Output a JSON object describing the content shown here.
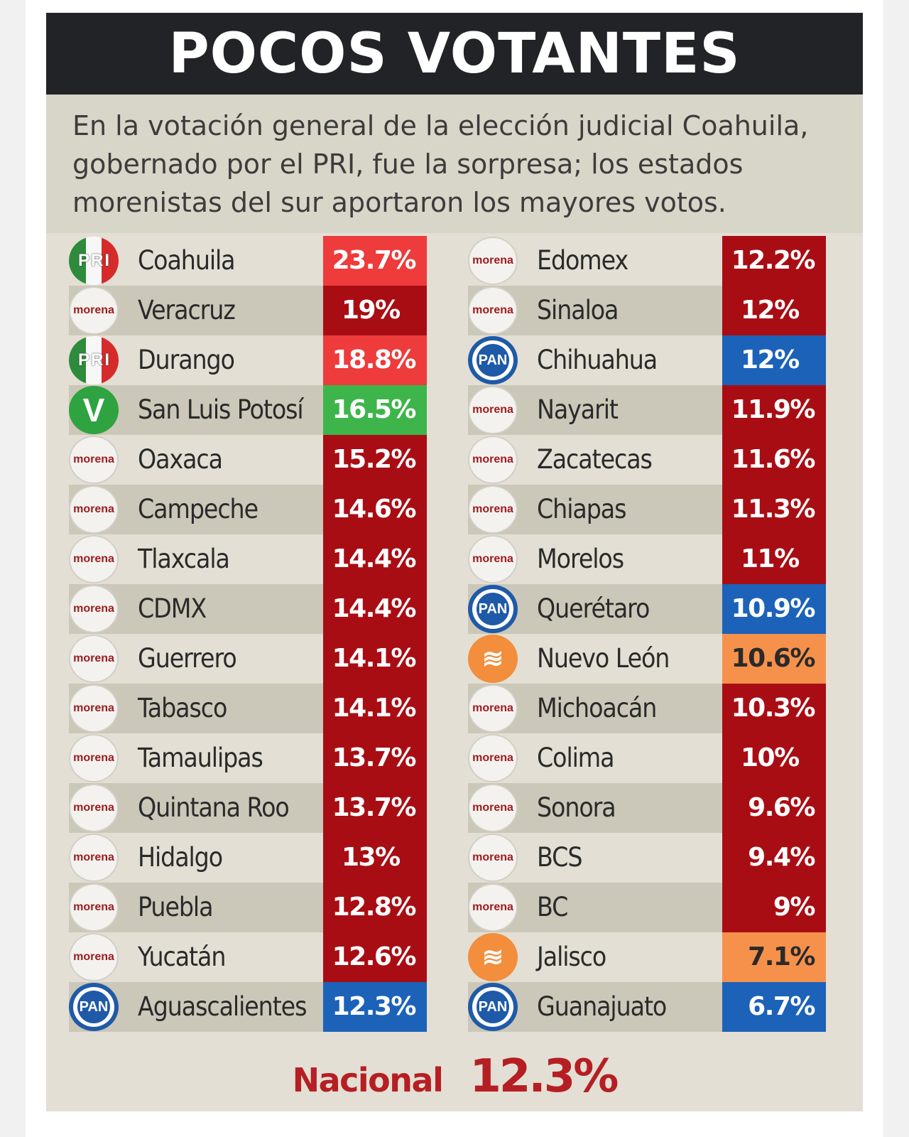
{
  "title": "POCOS VOTANTES",
  "subtitle_lines": [
    "En la votación general de la elección judicial Coahuila,",
    "gobernado por el PRI, fue la sorpresa; los estados",
    "morenistas del sur aportaron los mayores votos."
  ],
  "colors": {
    "PRI": "#ee3b3b",
    "MORENA": "#a90d14",
    "PVEM": "#3db54a",
    "PAN": "#1c62b8",
    "MC": "#f6914c"
  },
  "logo_text": {
    "morena": "morena",
    "PAN": "PAN",
    "PRI": [
      "P",
      "R",
      "I"
    ],
    "PVEM": "V",
    "MC": "≋"
  },
  "chart_data": {
    "type": "table",
    "title": "POCOS VOTANTES",
    "columns": [
      [
        {
          "state": "Coahuila",
          "party": "PRI",
          "value": 23.7,
          "label": "23.7%"
        },
        {
          "state": "Veracruz",
          "party": "MORENA",
          "value": 19,
          "label": "19%"
        },
        {
          "state": "Durango",
          "party": "PRI",
          "value": 18.8,
          "label": "18.8%"
        },
        {
          "state": "San Luis Potosí",
          "party": "PVEM",
          "value": 16.5,
          "label": "16.5%"
        },
        {
          "state": "Oaxaca",
          "party": "MORENA",
          "value": 15.2,
          "label": "15.2%"
        },
        {
          "state": "Campeche",
          "party": "MORENA",
          "value": 14.6,
          "label": "14.6%"
        },
        {
          "state": "Tlaxcala",
          "party": "MORENA",
          "value": 14.4,
          "label": "14.4%"
        },
        {
          "state": "CDMX",
          "party": "MORENA",
          "value": 14.4,
          "label": "14.4%"
        },
        {
          "state": "Guerrero",
          "party": "MORENA",
          "value": 14.1,
          "label": "14.1%"
        },
        {
          "state": "Tabasco",
          "party": "MORENA",
          "value": 14.1,
          "label": "14.1%"
        },
        {
          "state": "Tamaulipas",
          "party": "MORENA",
          "value": 13.7,
          "label": "13.7%"
        },
        {
          "state": "Quintana Roo",
          "party": "MORENA",
          "value": 13.7,
          "label": "13.7%"
        },
        {
          "state": "Hidalgo",
          "party": "MORENA",
          "value": 13,
          "label": "13%"
        },
        {
          "state": "Puebla",
          "party": "MORENA",
          "value": 12.8,
          "label": "12.8%"
        },
        {
          "state": "Yucatán",
          "party": "MORENA",
          "value": 12.6,
          "label": "12.6%"
        },
        {
          "state": "Aguascalientes",
          "party": "PAN",
          "value": 12.3,
          "label": "12.3%"
        }
      ],
      [
        {
          "state": "Edomex",
          "party": "MORENA",
          "value": 12.2,
          "label": "12.2%"
        },
        {
          "state": "Sinaloa",
          "party": "MORENA",
          "value": 12,
          "label": "12%"
        },
        {
          "state": "Chihuahua",
          "party": "PAN",
          "value": 12,
          "label": "12%"
        },
        {
          "state": "Nayarit",
          "party": "MORENA",
          "value": 11.9,
          "label": "11.9%"
        },
        {
          "state": "Zacatecas",
          "party": "MORENA",
          "value": 11.6,
          "label": "11.6%"
        },
        {
          "state": "Chiapas",
          "party": "MORENA",
          "value": 11.3,
          "label": "11.3%"
        },
        {
          "state": "Morelos",
          "party": "MORENA",
          "value": 11,
          "label": "11%"
        },
        {
          "state": "Querétaro",
          "party": "PAN",
          "value": 10.9,
          "label": "10.9%"
        },
        {
          "state": "Nuevo León",
          "party": "MC",
          "value": 10.6,
          "label": "10.6%"
        },
        {
          "state": "Michoacán",
          "party": "MORENA",
          "value": 10.3,
          "label": "10.3%"
        },
        {
          "state": "Colima",
          "party": "MORENA",
          "value": 10,
          "label": "10%"
        },
        {
          "state": "Sonora",
          "party": "MORENA",
          "value": 9.6,
          "label": "9.6%"
        },
        {
          "state": "BCS",
          "party": "MORENA",
          "value": 9.4,
          "label": "9.4%"
        },
        {
          "state": "BC",
          "party": "MORENA",
          "value": 9,
          "label": "9%"
        },
        {
          "state": "Jalisco",
          "party": "MC",
          "value": 7.1,
          "label": "7.1%"
        },
        {
          "state": "Guanajuato",
          "party": "PAN",
          "value": 6.7,
          "label": "6.7%"
        }
      ]
    ],
    "national": {
      "label": "Nacional",
      "value": 12.3,
      "value_label": "12.3%"
    }
  }
}
